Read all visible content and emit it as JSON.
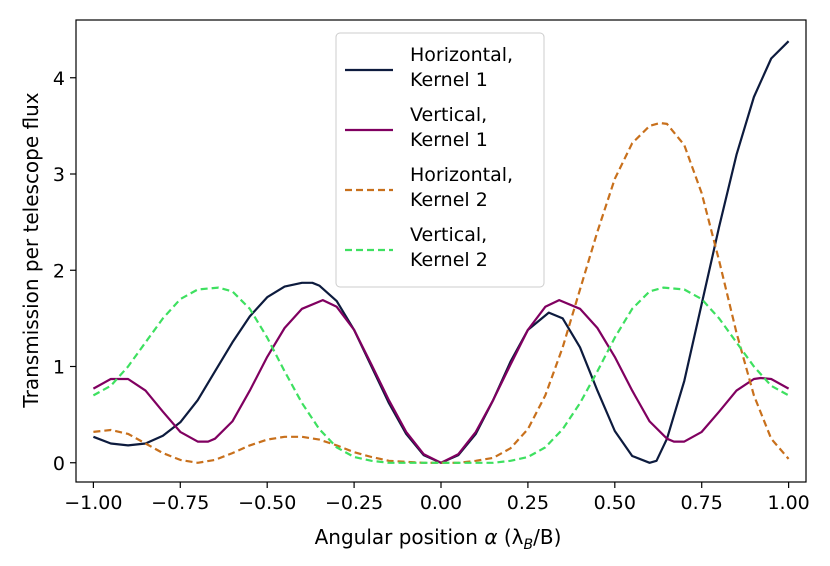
{
  "chart_data": {
    "type": "line",
    "title": "",
    "xlabel": "Angular position",
    "xlabel_symbol": "α",
    "xlabel_units": "(λ",
    "xlabel_units_sub": "B",
    "xlabel_units_tail": "/B)",
    "ylabel": "Transmission per telescope flux",
    "xlim": [
      -1.05,
      1.05
    ],
    "ylim": [
      -0.2,
      4.6
    ],
    "xticks": [
      -1.0,
      -0.75,
      -0.5,
      -0.25,
      0.0,
      0.25,
      0.5,
      0.75,
      1.0
    ],
    "xtick_labels": [
      "−1.00",
      "−0.75",
      "−0.50",
      "−0.25",
      "0.00",
      "0.25",
      "0.50",
      "0.75",
      "1.00"
    ],
    "yticks": [
      0,
      1,
      2,
      3,
      4
    ],
    "ytick_labels": [
      "0",
      "1",
      "2",
      "3",
      "4"
    ],
    "legend_position": "upper-center",
    "series": [
      {
        "name_line1": "Horizontal,",
        "name_line2": "Kernel 1",
        "color": "#0d1b3e",
        "dash": "solid",
        "x": [
          -1.0,
          -0.95,
          -0.9,
          -0.85,
          -0.8,
          -0.75,
          -0.7,
          -0.65,
          -0.6,
          -0.55,
          -0.5,
          -0.45,
          -0.4,
          -0.37,
          -0.35,
          -0.3,
          -0.25,
          -0.2,
          -0.15,
          -0.1,
          -0.05,
          0.0,
          0.05,
          0.1,
          0.15,
          0.2,
          0.25,
          0.31,
          0.35,
          0.4,
          0.45,
          0.5,
          0.55,
          0.6,
          0.62,
          0.65,
          0.7,
          0.75,
          0.8,
          0.85,
          0.9,
          0.95,
          1.0
        ],
        "y": [
          0.27,
          0.2,
          0.18,
          0.2,
          0.28,
          0.42,
          0.65,
          0.95,
          1.25,
          1.52,
          1.72,
          1.83,
          1.87,
          1.87,
          1.84,
          1.68,
          1.38,
          1.0,
          0.62,
          0.3,
          0.08,
          0.0,
          0.08,
          0.3,
          0.65,
          1.05,
          1.38,
          1.56,
          1.5,
          1.2,
          0.75,
          0.33,
          0.07,
          0.0,
          0.02,
          0.25,
          0.85,
          1.65,
          2.45,
          3.2,
          3.8,
          4.2,
          4.38
        ]
      },
      {
        "name_line1": "Vertical,",
        "name_line2": "Kernel 1",
        "color": "#800060",
        "dash": "solid",
        "x": [
          -1.0,
          -0.95,
          -0.9,
          -0.85,
          -0.8,
          -0.75,
          -0.7,
          -0.67,
          -0.65,
          -0.6,
          -0.55,
          -0.5,
          -0.45,
          -0.4,
          -0.34,
          -0.3,
          -0.25,
          -0.2,
          -0.15,
          -0.1,
          -0.05,
          0.0,
          0.05,
          0.1,
          0.15,
          0.2,
          0.25,
          0.3,
          0.34,
          0.4,
          0.45,
          0.5,
          0.55,
          0.6,
          0.65,
          0.67,
          0.7,
          0.75,
          0.8,
          0.85,
          0.9,
          0.92,
          0.95,
          1.0
        ],
        "y": [
          0.77,
          0.87,
          0.87,
          0.75,
          0.53,
          0.32,
          0.22,
          0.22,
          0.25,
          0.43,
          0.75,
          1.1,
          1.4,
          1.6,
          1.69,
          1.62,
          1.38,
          1.02,
          0.65,
          0.32,
          0.09,
          0.0,
          0.09,
          0.32,
          0.65,
          1.02,
          1.38,
          1.62,
          1.69,
          1.6,
          1.4,
          1.1,
          0.75,
          0.43,
          0.25,
          0.22,
          0.22,
          0.32,
          0.53,
          0.75,
          0.87,
          0.88,
          0.87,
          0.77
        ]
      },
      {
        "name_line1": "Horizontal,",
        "name_line2": "Kernel 2",
        "color": "#c8701c",
        "dash": "dashed",
        "x": [
          -1.0,
          -0.95,
          -0.9,
          -0.85,
          -0.8,
          -0.75,
          -0.7,
          -0.65,
          -0.6,
          -0.55,
          -0.5,
          -0.45,
          -0.4,
          -0.35,
          -0.3,
          -0.25,
          -0.2,
          -0.15,
          -0.1,
          -0.05,
          0.0,
          0.05,
          0.1,
          0.15,
          0.2,
          0.25,
          0.3,
          0.35,
          0.4,
          0.45,
          0.5,
          0.55,
          0.6,
          0.63,
          0.65,
          0.7,
          0.75,
          0.8,
          0.85,
          0.9,
          0.95,
          1.0
        ],
        "y": [
          0.32,
          0.34,
          0.3,
          0.2,
          0.1,
          0.03,
          0.0,
          0.03,
          0.1,
          0.18,
          0.24,
          0.27,
          0.27,
          0.24,
          0.18,
          0.11,
          0.06,
          0.02,
          0.01,
          0.0,
          0.0,
          0.0,
          0.02,
          0.05,
          0.15,
          0.35,
          0.7,
          1.2,
          1.8,
          2.4,
          2.95,
          3.32,
          3.5,
          3.53,
          3.52,
          3.3,
          2.8,
          2.1,
          1.35,
          0.7,
          0.25,
          0.04
        ]
      },
      {
        "name_line1": "Vertical,",
        "name_line2": "Kernel 2",
        "color": "#3ee060",
        "dash": "dashed",
        "x": [
          -1.0,
          -0.95,
          -0.9,
          -0.85,
          -0.8,
          -0.75,
          -0.7,
          -0.64,
          -0.6,
          -0.55,
          -0.5,
          -0.45,
          -0.4,
          -0.35,
          -0.3,
          -0.25,
          -0.2,
          -0.15,
          -0.1,
          -0.05,
          0.0,
          0.05,
          0.1,
          0.15,
          0.2,
          0.25,
          0.3,
          0.35,
          0.4,
          0.45,
          0.5,
          0.55,
          0.6,
          0.64,
          0.7,
          0.75,
          0.8,
          0.85,
          0.9,
          0.95,
          1.0
        ],
        "y": [
          0.7,
          0.8,
          1.0,
          1.25,
          1.5,
          1.7,
          1.8,
          1.82,
          1.78,
          1.6,
          1.3,
          0.95,
          0.62,
          0.35,
          0.16,
          0.06,
          0.02,
          0.0,
          0.0,
          0.0,
          0.0,
          0.0,
          0.0,
          0.0,
          0.02,
          0.06,
          0.16,
          0.35,
          0.62,
          0.95,
          1.3,
          1.6,
          1.78,
          1.82,
          1.8,
          1.7,
          1.5,
          1.25,
          1.0,
          0.8,
          0.7
        ]
      }
    ]
  }
}
